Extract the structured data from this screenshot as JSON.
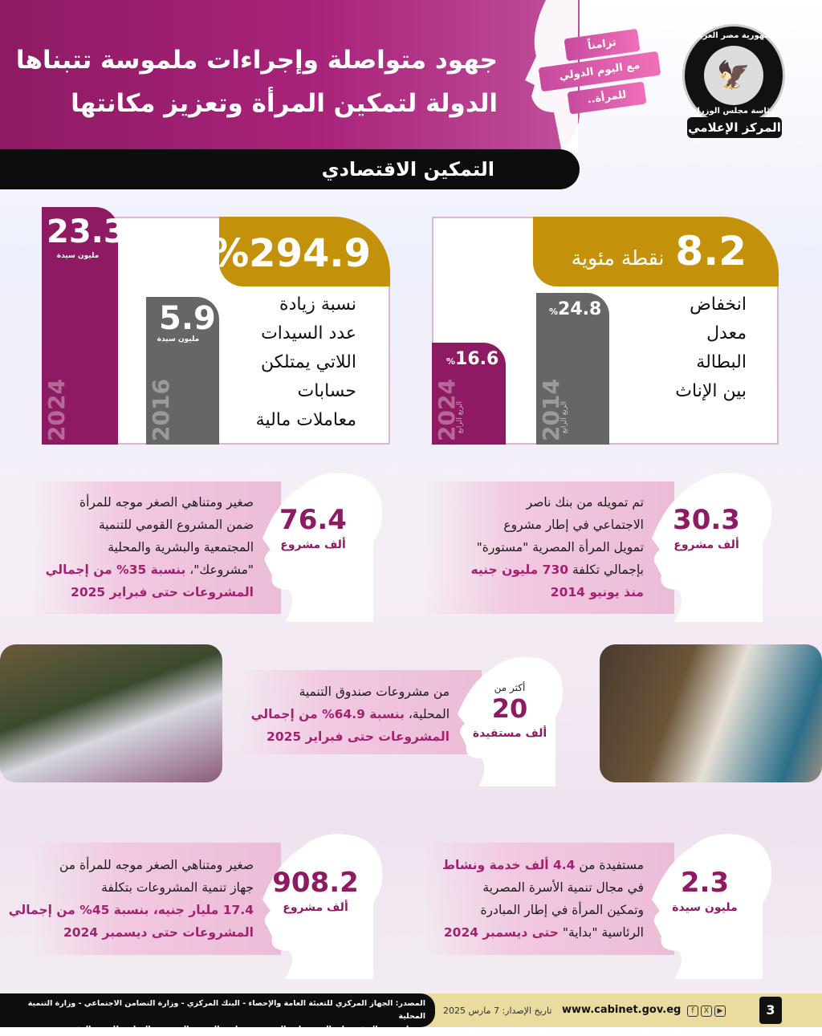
{
  "header": {
    "title_line1": "جهود متواصلة وإجراءات ملموسة تتبناها",
    "title_line2": "الدولة لتمكين المرأة وتعزيز مكانتها",
    "section": "التمكين الاقتصادي",
    "ribbon": [
      "تزامناً",
      "مع اليوم الدولي",
      "للمرأة.."
    ],
    "logo": {
      "top_text": "جمهورية مصر العربية",
      "middle_text": "رئاسة مجلس الوزراء",
      "band_text": "المركز الإعلامي"
    }
  },
  "accounts": {
    "headline_value": "294.9",
    "headline_suffix": "%",
    "description": [
      "نسبة زيادة",
      "عدد السيدات",
      "اللاتي يمتلكن",
      "حسابات",
      "معاملات مالية"
    ],
    "bars": [
      {
        "year": "2024",
        "value": "23.3",
        "unit": "مليون سيدة",
        "color": "#8e1a63"
      },
      {
        "year": "2016",
        "value": "5.9",
        "unit": "مليون سيدة",
        "color": "#666666"
      }
    ]
  },
  "unemployment": {
    "headline_value": "8.2",
    "headline_unit": "نقطة مئوية",
    "description": [
      "انخفاض",
      "معدل",
      "البطالة",
      "بين الإناث"
    ],
    "bars": [
      {
        "year": "2014",
        "period": "الربع الرابع",
        "value": "24.8",
        "suffix": "%",
        "color": "#666666"
      },
      {
        "year": "2024",
        "period": "الربع الرابع",
        "value": "16.6",
        "suffix": "%",
        "color": "#8e1a63"
      }
    ]
  },
  "stats": [
    {
      "value": "30.3",
      "unit": "ألف مشروع",
      "text": [
        "تم تمويله من بنك ناصر",
        "الاجتماعي في إطار مشروع",
        "تمويل المرأة المصرية \"مستورة\""
      ],
      "highlight": [
        "بإجمالي تكلفة ",
        "730 مليون جنيه",
        "منذ يونيو 2014"
      ]
    },
    {
      "value": "76.4",
      "unit": "ألف مشروع",
      "text": [
        "صغير ومتناهي الصغر موجه للمرأة",
        "ضمن المشروع القومي للتنمية",
        "المجتمعية والبشرية والمحلية"
      ],
      "highlight": [
        "\"مشروعك\"، ",
        "بنسبة 35% من إجمالي",
        "المشروعات حتى فبراير 2025"
      ]
    },
    {
      "prefix": "أكثر من",
      "value": "20",
      "unit": "ألف مستفيدة",
      "text": [
        "من مشروعات صندوق التنمية"
      ],
      "highlight": [
        "المحلية، ",
        "بنسبة 64.9% من إجمالي",
        "المشروعات حتى فبراير 2025"
      ]
    },
    {
      "value": "2.3",
      "unit": "مليون سيدة",
      "text": [
        "في مجال تنمية الأسرة المصرية",
        "وتمكين المرأة في إطار المبادرة"
      ],
      "highlight": [
        "مستفيدة من ",
        "4.4 ألف خدمة ونشاط",
        "الرئاسية \"بداية\" ",
        "حتى ديسمبر 2024"
      ]
    },
    {
      "value": "908.2",
      "unit": "ألف مشروع",
      "text": [
        "صغير ومتناهي الصغر موجه للمرأة من",
        "جهاز تنمية المشروعات بتكلفة"
      ],
      "highlight": [
        "17.4 مليار جنيه، بنسبة 45% من إجمالي",
        "المشروعات حتى ديسمبر 2024"
      ]
    }
  ],
  "footer": {
    "source_line1": "المصدر: الجهاز المركزي للتعبئة العامة والإحصاء - البنك المركزي - وزارة التضامن الاجتماعي - وزارة التنمية المحلية",
    "source_line2": "- جهاز تنمية المشروعات المتوسطة والصغيرة ومتناهية الصغر - المجموعة الوزارية للتنمية البشرية",
    "release_date": "تاريخ الإصدار: 7 مارس 2025",
    "website": "www.cabinet.gov.eg",
    "social": [
      "f",
      "X",
      "▶"
    ],
    "page_number": "3"
  },
  "colors": {
    "magenta": "#8e1a63",
    "gold": "#c4920a",
    "gray": "#666666",
    "pink": "#f1c9e0"
  }
}
